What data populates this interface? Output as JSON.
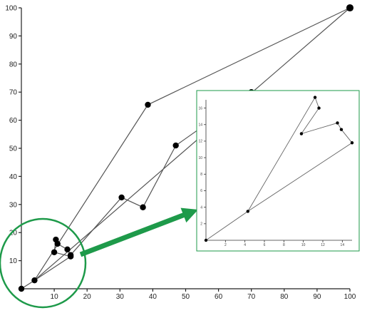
{
  "chart_data": [
    {
      "type": "line",
      "xlim": [
        0,
        100
      ],
      "ylim": [
        0,
        100
      ],
      "x_ticks": [
        "10",
        "20",
        "30",
        "40",
        "50",
        "60",
        "70",
        "80",
        "90",
        "100"
      ],
      "y_ticks": [
        "10",
        "20",
        "30",
        "40",
        "50",
        "60",
        "70",
        "80",
        "90",
        "100"
      ],
      "grid": false,
      "series": [
        {
          "points": [
            {
              "x": 0,
              "y": 0
            },
            {
              "x": 4,
              "y": 3
            },
            {
              "x": 15,
              "y": 11.5
            },
            {
              "x": 10,
              "y": 13
            },
            {
              "x": 10.5,
              "y": 17.5
            },
            {
              "x": 11,
              "y": 16
            },
            {
              "x": 14,
              "y": 14
            },
            {
              "x": 15,
              "y": 12
            },
            {
              "x": 30.5,
              "y": 32.5
            },
            {
              "x": 37,
              "y": 29
            },
            {
              "x": 47,
              "y": 51
            },
            {
              "x": 70,
              "y": 70
            }
          ]
        },
        {
          "points": [
            {
              "x": 4,
              "y": 3
            },
            {
              "x": 38.5,
              "y": 65.5
            },
            {
              "x": 100,
              "y": 100
            },
            {
              "x": 4,
              "y": 3
            }
          ]
        }
      ],
      "highlight_color": "#1e9a4a"
    },
    {
      "type": "line",
      "role": "inset",
      "xlim": [
        0,
        15
      ],
      "ylim": [
        0,
        17
      ],
      "x_ticks": [
        "2",
        "4",
        "6",
        "8",
        "10",
        "12",
        "14"
      ],
      "y_ticks": [
        "2",
        "4",
        "6",
        "8",
        "10",
        "12",
        "14",
        "16"
      ],
      "grid": false,
      "series": [
        {
          "points": [
            {
              "x": 0,
              "y": 0
            },
            {
              "x": 4.3,
              "y": 3.5
            },
            {
              "x": 11.2,
              "y": 17.3
            },
            {
              "x": 11.6,
              "y": 16
            },
            {
              "x": 9.8,
              "y": 12.9
            },
            {
              "x": 13.5,
              "y": 14.2
            },
            {
              "x": 13.9,
              "y": 13.4
            },
            {
              "x": 15,
              "y": 11.8
            },
            {
              "x": 4.3,
              "y": 3.5
            }
          ]
        }
      ],
      "frame_color": "#1e9a4a"
    }
  ]
}
